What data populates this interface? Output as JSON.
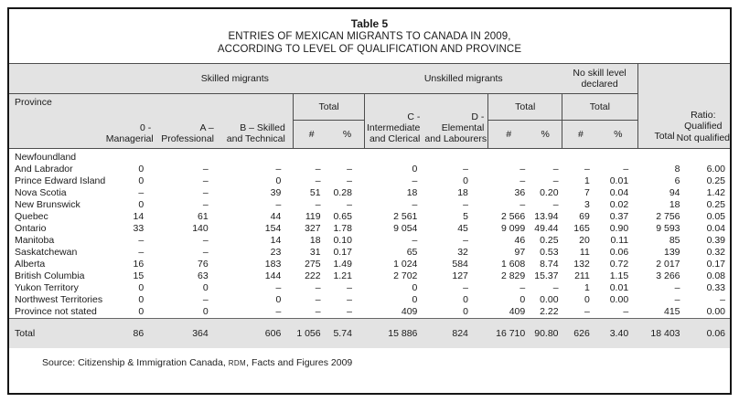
{
  "title": {
    "line1": "Table 5",
    "line2": "ENTRIES OF MEXICAN MIGRANTS TO CANADA IN 2009,",
    "line3": "ACCORDING TO LEVEL OF QUALIFICATION AND PROVINCE"
  },
  "header": {
    "province": "Province",
    "groups": {
      "skilled": "Skilled migrants",
      "unskilled": "Unskilled migrants",
      "noskill": "No skill level\ndeclared"
    },
    "cols": {
      "managerial": "0 -\nManagerial",
      "professional": "A –\nProfessional",
      "skilled_technical": "B – Skilled\nand Technical",
      "intermediate": "C -\nIntermediate\nand Clerical",
      "elemental": "D -\nElemental\nand Labourers",
      "total": "Total",
      "num": "#",
      "pct": "%",
      "grand_total": "Total",
      "ratio": "Ratio:\nQualified\nNot qualified"
    }
  },
  "rows": [
    {
      "province": "Newfoundland",
      "values": [
        "",
        "",
        "",
        "",
        "",
        "",
        "",
        "",
        "",
        "",
        "",
        "",
        ""
      ]
    },
    {
      "province": "And Labrador",
      "values": [
        "0",
        "–",
        "–",
        "–",
        "–",
        "0",
        "–",
        "–",
        "–",
        "–",
        "–",
        "8",
        "6.00"
      ]
    },
    {
      "province": "Prince Edward Island",
      "values": [
        "0",
        "–",
        "0",
        "–",
        "–",
        "–",
        "0",
        "–",
        "–",
        "1",
        "0.01",
        "6",
        "0.25"
      ]
    },
    {
      "province": "Nova Scotia",
      "values": [
        "–",
        "–",
        "39",
        "51",
        "0.28",
        "18",
        "18",
        "36",
        "0.20",
        "7",
        "0.04",
        "94",
        "1.42"
      ]
    },
    {
      "province": "New Brunswick",
      "values": [
        "0",
        "–",
        "–",
        "–",
        "–",
        "–",
        "–",
        "–",
        "–",
        "3",
        "0.02",
        "18",
        "0.25"
      ]
    },
    {
      "province": "Quebec",
      "values": [
        "14",
        "61",
        "44",
        "119",
        "0.65",
        "2 561",
        "5",
        "2 566",
        "13.94",
        "69",
        "0.37",
        "2 756",
        "0.05"
      ]
    },
    {
      "province": "Ontario",
      "values": [
        "33",
        "140",
        "154",
        "327",
        "1.78",
        "9 054",
        "45",
        "9 099",
        "49.44",
        "165",
        "0.90",
        "9 593",
        "0.04"
      ]
    },
    {
      "province": "Manitoba",
      "values": [
        "–",
        "–",
        "14",
        "18",
        "0.10",
        "–",
        "–",
        "46",
        "0.25",
        "20",
        "0.11",
        "85",
        "0.39"
      ]
    },
    {
      "province": "Saskatchewan",
      "values": [
        "–",
        "–",
        "23",
        "31",
        "0.17",
        "65",
        "32",
        "97",
        "0.53",
        "11",
        "0.06",
        "139",
        "0.32"
      ]
    },
    {
      "province": "Alberta",
      "values": [
        "16",
        "76",
        "183",
        "275",
        "1.49",
        "1 024",
        "584",
        "1 608",
        "8.74",
        "132",
        "0.72",
        "2 017",
        "0.17"
      ]
    },
    {
      "province": "British Columbia",
      "values": [
        "15",
        "63",
        "144",
        "222",
        "1.21",
        "2 702",
        "127",
        "2 829",
        "15.37",
        "211",
        "1.15",
        "3 266",
        "0.08"
      ]
    },
    {
      "province": "Yukon Territory",
      "values": [
        "0",
        "0",
        "–",
        "–",
        "–",
        "0",
        "–",
        "–",
        "–",
        "1",
        "0.01",
        "–",
        "0.33"
      ]
    },
    {
      "province": "Northwest Territories",
      "values": [
        "0",
        "–",
        "0",
        "–",
        "–",
        "0",
        "0",
        "0",
        "0.00",
        "0",
        "0.00",
        "–",
        "–"
      ]
    },
    {
      "province": "Province not stated",
      "values": [
        "0",
        "0",
        "–",
        "–",
        "–",
        "409",
        "0",
        "409",
        "2.22",
        "–",
        "–",
        "415",
        "0.00"
      ]
    }
  ],
  "total_row": {
    "label": "Total",
    "values": [
      "86",
      "364",
      "606",
      "1 056",
      "5.74",
      "15 886",
      "824",
      "16 710",
      "90.80",
      "626",
      "3.40",
      "18 403",
      "0.06"
    ]
  },
  "source": {
    "prefix": "Source: Citizenship & Immigration Canada, ",
    "rdm": "RDM",
    "suffix": ", Facts and Figures 2009"
  }
}
